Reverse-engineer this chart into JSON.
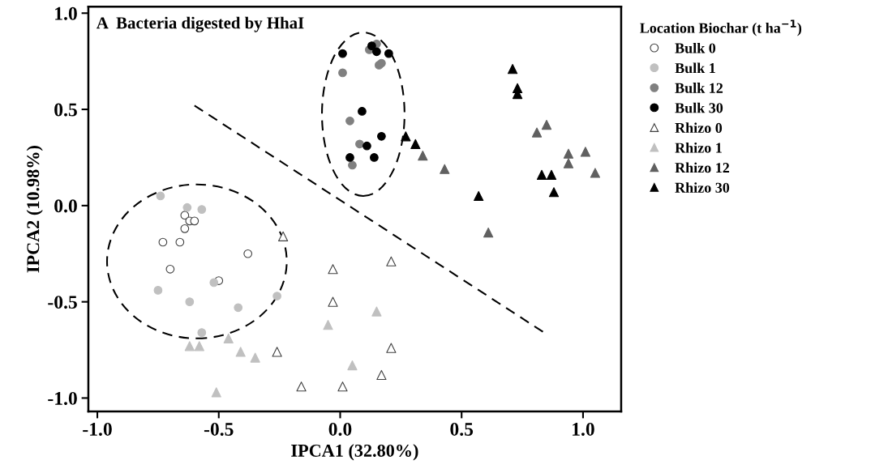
{
  "chart_data": {
    "type": "scatter",
    "title": "A  Bacteria digested by HhaI",
    "xlabel": "IPCA1 (32.80%)",
    "ylabel": "IPCA2 (10.98%)",
    "legend_title": "Location Biochar (t ha$^{−1}$)",
    "xlim": [
      -1.037,
      1.157
    ],
    "ylim": [
      -1.07,
      1.034
    ],
    "xticks": [
      {
        "value": -1.0,
        "label": "-1.0"
      },
      -0.5,
      {
        "value": 0.0,
        "label": "0.0"
      },
      0.5,
      {
        "value": 1.0,
        "label": "1.0"
      }
    ],
    "yticks": [
      {
        "value": -1.0,
        "label": "-1.0"
      },
      -0.5,
      {
        "value": 0.0,
        "label": "0.0"
      },
      0.5,
      {
        "value": 1.0,
        "label": "1.0"
      }
    ],
    "grid": false,
    "legend": "right",
    "series": [
      {
        "name": "Bulk 0",
        "color": "#ffffff",
        "marker": "circle",
        "x": [
          -0.64,
          -0.62,
          -0.6,
          -0.64,
          -0.73,
          -0.66,
          -0.7,
          -0.38,
          -0.5
        ],
        "values": [
          -0.05,
          -0.08,
          -0.08,
          -0.12,
          -0.19,
          -0.19,
          -0.33,
          -0.25,
          -0.39
        ]
      },
      {
        "name": "Bulk 1",
        "color": "#c0c0c0",
        "marker": "circle",
        "x": [
          -0.74,
          -0.63,
          -0.57,
          -0.75,
          -0.62,
          -0.52,
          -0.42,
          -0.26,
          -0.57
        ],
        "values": [
          0.05,
          -0.01,
          -0.02,
          -0.44,
          -0.5,
          -0.4,
          -0.53,
          -0.47,
          -0.66
        ]
      },
      {
        "name": "Bulk 12",
        "color": "#808080",
        "marker": "circle",
        "x": [
          0.01,
          0.04,
          0.08,
          0.05,
          0.12,
          0.16,
          0.17,
          0.15
        ],
        "values": [
          0.69,
          0.44,
          0.32,
          0.21,
          0.81,
          0.73,
          0.74,
          0.84
        ]
      },
      {
        "name": "Bulk 30",
        "color": "#000000",
        "marker": "circle",
        "x": [
          0.01,
          0.13,
          0.15,
          0.2,
          0.09,
          0.17,
          0.11,
          0.04,
          0.14
        ],
        "values": [
          0.79,
          0.83,
          0.8,
          0.79,
          0.49,
          0.36,
          0.31,
          0.25,
          0.25
        ]
      },
      {
        "name": "Rhizo 0",
        "color": "#ffffff",
        "marker": "triangle",
        "x": [
          -0.235,
          -0.26,
          -0.16,
          -0.03,
          -0.03,
          0.21,
          0.21,
          0.17,
          0.01
        ],
        "values": [
          -0.16,
          -0.76,
          -0.94,
          -0.33,
          -0.5,
          -0.29,
          -0.74,
          -0.88,
          -0.94
        ]
      },
      {
        "name": "Rhizo 1",
        "color": "#c0c0c0",
        "marker": "triangle",
        "x": [
          -0.62,
          -0.58,
          -0.46,
          -0.41,
          -0.35,
          -0.51,
          -0.05,
          0.15,
          0.05
        ],
        "values": [
          -0.73,
          -0.73,
          -0.69,
          -0.76,
          -0.79,
          -0.97,
          -0.62,
          -0.55,
          -0.83
        ]
      },
      {
        "name": "Rhizo 12",
        "color": "#606060",
        "marker": "triangle",
        "x": [
          0.34,
          0.43,
          0.81,
          0.85,
          0.94,
          1.01,
          0.94,
          1.05,
          0.61
        ],
        "values": [
          0.26,
          0.19,
          0.38,
          0.42,
          0.27,
          0.28,
          0.22,
          0.17,
          -0.14
        ]
      },
      {
        "name": "Rhizo 30",
        "color": "#000000",
        "marker": "triangle",
        "x": [
          0.27,
          0.31,
          0.71,
          0.73,
          0.73,
          0.83,
          0.87,
          0.88,
          0.57
        ],
        "values": [
          0.36,
          0.32,
          0.71,
          0.61,
          0.58,
          0.16,
          0.16,
          0.07,
          0.05
        ]
      },
      {
        "type": "line",
        "color": "#000000",
        "line_style": "dashed",
        "marker": "none",
        "x": [
          -0.6,
          0.84
        ],
        "values": [
          0.52,
          -0.66
        ]
      }
    ]
  }
}
